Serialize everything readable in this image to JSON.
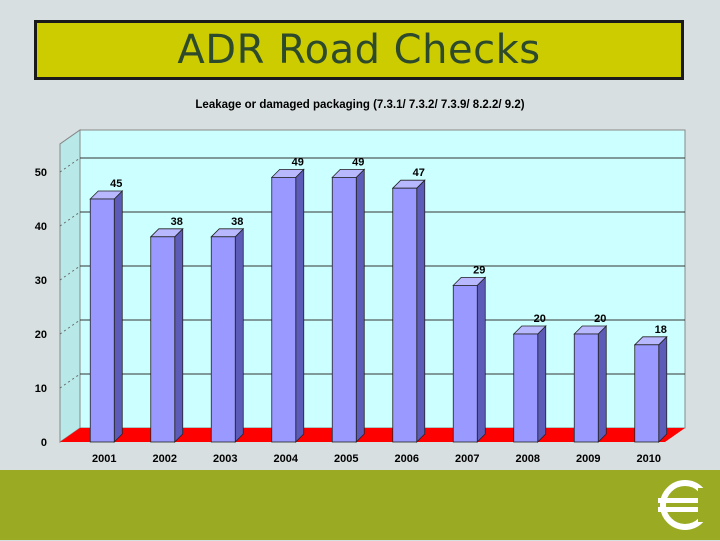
{
  "slide": {
    "title": "ADR Road Checks"
  },
  "colors": {
    "title_bg": "#cccc00",
    "title_text": "#2e4a2c",
    "plot_bg": "#ccffff",
    "bar_front": "#9999ff",
    "bar_side": "#5c5cb8",
    "bar_top": "#b8b8ff",
    "floor": "#ff0000",
    "footer": "#9aaa22"
  },
  "logo": {
    "icon": "euro-sign-emblem-icon"
  },
  "chart_data": {
    "type": "bar",
    "title": "Leakage or damaged packaging (7.3.1/ 7.3.2/ 7.3.9/ 8.2.2/ 9.2)",
    "categories": [
      "2001",
      "2002",
      "2003",
      "2004",
      "2005",
      "2006",
      "2007",
      "2008",
      "2009",
      "2010"
    ],
    "values": [
      45,
      38,
      38,
      49,
      49,
      47,
      29,
      20,
      20,
      18
    ],
    "data_labels": [
      "45",
      "38",
      "38",
      "49",
      "49",
      "47",
      "29",
      "20",
      "20",
      "18"
    ],
    "yticks": [
      "0",
      "10",
      "20",
      "30",
      "40",
      "50"
    ],
    "ylim": [
      0,
      50
    ],
    "xlabel": "",
    "ylabel": "",
    "grid": true,
    "legend": "none",
    "style": "3d"
  }
}
